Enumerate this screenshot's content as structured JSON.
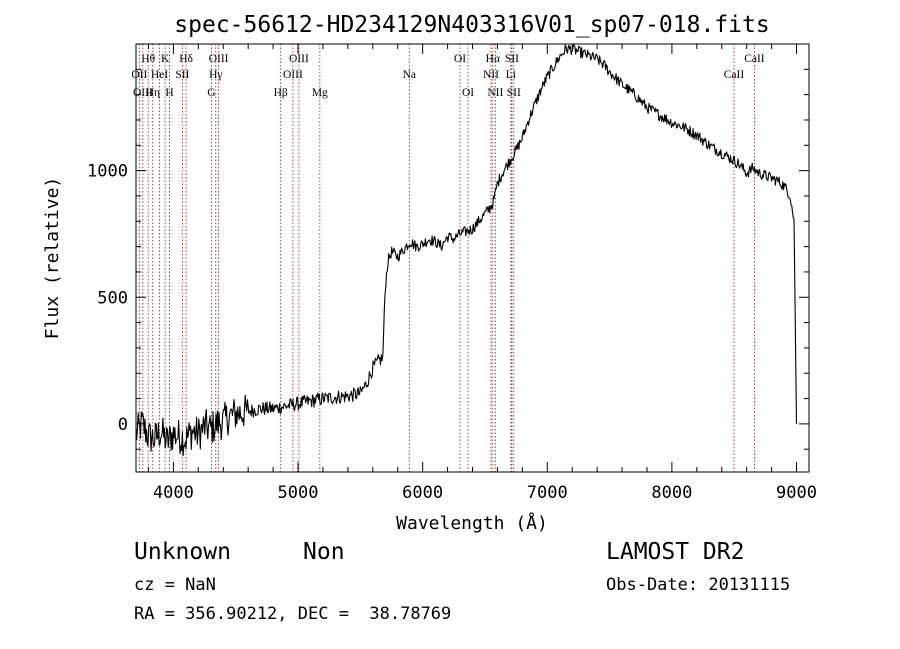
{
  "chart_data": {
    "type": "line",
    "title": "spec-56612-HD234129N403316V01_sp07-018.fits",
    "xlabel": "Wavelength (Å)",
    "ylabel": "Flux (relative)",
    "xlim": [
      3700,
      9100
    ],
    "ylim": [
      -190,
      1500
    ],
    "x_ticks": [
      4000,
      5000,
      6000,
      7000,
      8000,
      9000
    ],
    "x_tick_labels": [
      "4000",
      "5000",
      "6000",
      "7000",
      "8000",
      "9000"
    ],
    "y_ticks": [
      0,
      500,
      1000
    ],
    "y_tick_labels": [
      "0",
      "500",
      "1000"
    ],
    "grid": false,
    "series": [
      {
        "x": [
          3700,
          3750,
          3800,
          3850,
          3900,
          3950,
          4000,
          4050,
          4100,
          4150,
          4200,
          4250,
          4300,
          4350,
          4400,
          4450,
          4500,
          4600,
          4700,
          4800,
          4900,
          5000,
          5100,
          5200,
          5300,
          5400,
          5500,
          5550,
          5600,
          5650,
          5680,
          5700,
          5720,
          5750,
          5800,
          5850,
          5900,
          5950,
          6000,
          6050,
          6100,
          6150,
          6200,
          6250,
          6300,
          6350,
          6400,
          6450,
          6500,
          6550,
          6570,
          6600,
          6650,
          6700,
          6750,
          6800,
          6850,
          6900,
          6950,
          7000,
          7050,
          7100,
          7150,
          7200,
          7250,
          7300,
          7350,
          7400,
          7450,
          7500,
          7600,
          7700,
          7800,
          7900,
          8000,
          8100,
          8200,
          8300,
          8400,
          8500,
          8550,
          8600,
          8650,
          8700,
          8800,
          8850,
          8900,
          8950,
          8980,
          9000
        ],
        "y": [
          -40,
          0,
          -50,
          -60,
          -30,
          -70,
          -40,
          -50,
          -60,
          -30,
          -40,
          -10,
          -20,
          0,
          10,
          30,
          40,
          50,
          60,
          60,
          70,
          80,
          90,
          100,
          105,
          110,
          120,
          160,
          220,
          250,
          260,
          540,
          640,
          680,
          660,
          690,
          720,
          700,
          710,
          730,
          720,
          700,
          740,
          730,
          750,
          760,
          770,
          800,
          830,
          860,
          880,
          950,
          1000,
          1040,
          1080,
          1130,
          1200,
          1260,
          1320,
          1370,
          1410,
          1450,
          1480,
          1480,
          1470,
          1460,
          1450,
          1440,
          1420,
          1390,
          1340,
          1300,
          1250,
          1220,
          1190,
          1170,
          1140,
          1100,
          1070,
          1040,
          1020,
          990,
          1010,
          990,
          970,
          960,
          940,
          900,
          800,
          0
        ]
      }
    ],
    "spectral_lines": [
      {
        "label": "Hθ",
        "wavelength": 3798,
        "row": 1
      },
      {
        "label": "OII",
        "wavelength": 3727,
        "row": 2
      },
      {
        "label": "OIII",
        "wavelength": 3755,
        "row": 3
      },
      {
        "label": "K",
        "wavelength": 3934,
        "row": 1
      },
      {
        "label": "HeI",
        "wavelength": 3889,
        "row": 2
      },
      {
        "label": "Hη",
        "wavelength": 3835,
        "row": 3
      },
      {
        "label": "H",
        "wavelength": 3969,
        "row": 3
      },
      {
        "label": "Hδ",
        "wavelength": 4102,
        "row": 1
      },
      {
        "label": "SII",
        "wavelength": 4072,
        "row": 2
      },
      {
        "label": "OIII",
        "wavelength": 4363,
        "row": 1
      },
      {
        "label": "Hγ",
        "wavelength": 4340,
        "row": 2
      },
      {
        "label": "G",
        "wavelength": 4305,
        "row": 3
      },
      {
        "label": "OIII",
        "wavelength": 5007,
        "row": 1
      },
      {
        "label": "OIII",
        "wavelength": 4959,
        "row": 2
      },
      {
        "label": "Hβ",
        "wavelength": 4861,
        "row": 3
      },
      {
        "label": "Mg",
        "wavelength": 5175,
        "row": 3
      },
      {
        "label": "Na",
        "wavelength": 5893,
        "row": 2
      },
      {
        "label": "OI",
        "wavelength": 6300,
        "row": 1
      },
      {
        "label": "OI",
        "wavelength": 6364,
        "row": 3
      },
      {
        "label": "Hα",
        "wavelength": 6563,
        "row": 1
      },
      {
        "label": "SII",
        "wavelength": 6716,
        "row": 1
      },
      {
        "label": "NII",
        "wavelength": 6548,
        "row": 2
      },
      {
        "label": "Li",
        "wavelength": 6708,
        "row": 2
      },
      {
        "label": "NII",
        "wavelength": 6583,
        "row": 3
      },
      {
        "label": "SII",
        "wavelength": 6731,
        "row": 3
      },
      {
        "label": "CaII",
        "wavelength": 8662,
        "row": 1
      },
      {
        "label": "CaII",
        "wavelength": 8498,
        "row": 2
      }
    ]
  },
  "footer": {
    "object_class": "Unknown",
    "subclass": "Non",
    "survey": "LAMOST DR2",
    "cz": "cz = NaN",
    "obs_date": "Obs-Date: 20131115",
    "coords": "RA = 356.90212, DEC =  38.78769"
  },
  "colors": {
    "spectrum": "#000000",
    "line_markers": "#8b1a1a",
    "axes": "#000000",
    "background": "#ffffff"
  }
}
